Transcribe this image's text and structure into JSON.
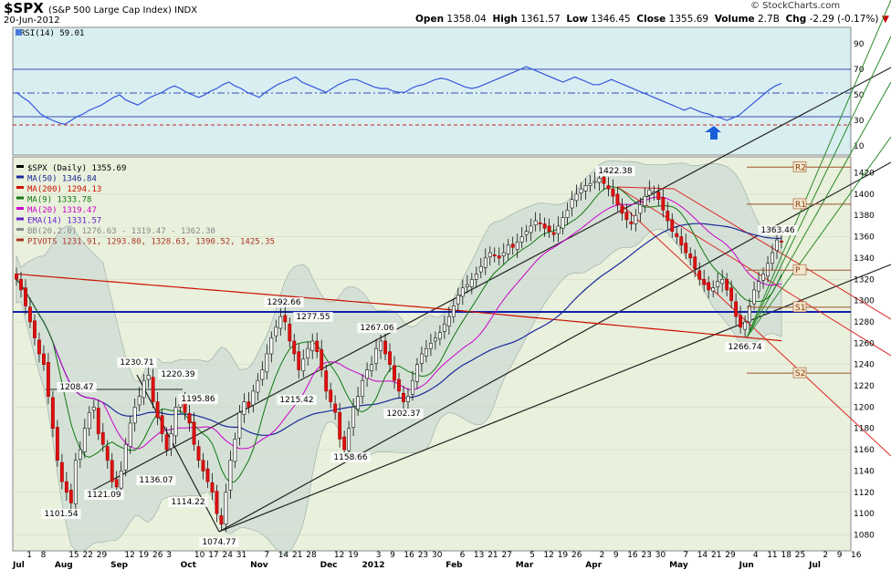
{
  "header": {
    "symbol": "$SPX",
    "name": "(S&P 500 Large Cap Index) INDX",
    "date": "20-Jun-2012",
    "open_label": "Open",
    "open": "1358.04",
    "high_label": "High",
    "high": "1361.57",
    "low_label": "Low",
    "low": "1346.45",
    "close_label": "Close",
    "close": "1355.69",
    "volume_label": "Volume",
    "volume": "2.7B",
    "chg_label": "Chg",
    "chg": "-2.29 (-0.17%)",
    "logo": "© StockCharts.com"
  },
  "rsi": {
    "label": "RSI(14) 59.01",
    "levels": [
      90,
      70,
      50,
      30,
      10
    ],
    "upper": 70,
    "lower": 30,
    "colors": {
      "line": "#3355dd",
      "bg": "#d6ecef",
      "fill": "#4a8ad8"
    }
  },
  "legend": [
    {
      "text": "$SPX (Daily) 1355.69",
      "color": "#000000"
    },
    {
      "text": "MA(50) 1346.84",
      "color": "#1a2a99"
    },
    {
      "text": "MA(200) 1294.13",
      "color": "#cc1100"
    },
    {
      "text": "MA(9) 1333.78",
      "color": "#117711"
    },
    {
      "text": "MA(20) 1319.47",
      "color": "#cc00cc"
    },
    {
      "text": "EMA(14) 1331.57",
      "color": "#6622cc"
    },
    {
      "text": "BB(20,2.0) 1276.63 - 1319.47 - 1362.30",
      "color": "#888888"
    },
    {
      "text": "PIVOTS 1231.91, 1293.80, 1328.63, 1390.52, 1425.35",
      "color": "#aa3322"
    }
  ],
  "pivot_labels": [
    "R2",
    "R1",
    "P",
    "S1",
    "S2"
  ],
  "y_ticks": [
    1080,
    1100,
    1120,
    1140,
    1160,
    1180,
    1200,
    1220,
    1240,
    1260,
    1280,
    1300,
    1320,
    1340,
    1360,
    1380,
    1400,
    1420
  ],
  "x_labels": [
    "Jul",
    "1",
    "8",
    "Aug",
    "15",
    "22",
    "29",
    "Sep",
    "12",
    "19",
    "26",
    "3",
    "Oct",
    "10",
    "17",
    "24",
    "31",
    "Nov",
    "7",
    "14",
    "21",
    "28",
    "Dec",
    "12",
    "19",
    "2012",
    "3",
    "9",
    "16",
    "23",
    "30",
    "Feb",
    "6",
    "13",
    "21",
    "27",
    "Mar",
    "5",
    "12",
    "19",
    "26",
    "Apr",
    "2",
    "9",
    "16",
    "23",
    "30",
    "May",
    "7",
    "14",
    "21",
    "29",
    "Jun",
    "4",
    "11",
    "18",
    "25",
    "Jul",
    "2",
    "9",
    "16"
  ],
  "chart_data": {
    "type": "candlestick",
    "title": "$SPX (Daily) 1355.69",
    "ylim": [
      1065,
      1435
    ],
    "annotations": [
      {
        "text": "1208.47"
      },
      {
        "text": "1230.71"
      },
      {
        "text": "1220.39"
      },
      {
        "text": "1195.86"
      },
      {
        "text": "1101.54"
      },
      {
        "text": "1121.09"
      },
      {
        "text": "1136.07"
      },
      {
        "text": "1114.22"
      },
      {
        "text": "1074.77"
      },
      {
        "text": "1292.66"
      },
      {
        "text": "1277.55"
      },
      {
        "text": "1215.42"
      },
      {
        "text": "1267.06"
      },
      {
        "text": "1158.66"
      },
      {
        "text": "1202.37"
      },
      {
        "text": "1422.38"
      },
      {
        "text": "1363.46"
      },
      {
        "text": "1266.74"
      }
    ],
    "closes": [
      1320,
      1310,
      1295,
      1280,
      1265,
      1250,
      1240,
      1210,
      1180,
      1150,
      1130,
      1120,
      1110,
      1150,
      1160,
      1180,
      1195,
      1200,
      1175,
      1165,
      1150,
      1130,
      1125,
      1140,
      1165,
      1185,
      1200,
      1210,
      1225,
      1230,
      1205,
      1190,
      1175,
      1160,
      1175,
      1200,
      1205,
      1195,
      1185,
      1165,
      1150,
      1140,
      1130,
      1120,
      1100,
      1090,
      1120,
      1150,
      1170,
      1195,
      1205,
      1200,
      1215,
      1225,
      1235,
      1250,
      1265,
      1275,
      1285,
      1280,
      1262,
      1250,
      1235,
      1245,
      1255,
      1262,
      1252,
      1235,
      1215,
      1205,
      1195,
      1170,
      1160,
      1180,
      1200,
      1210,
      1225,
      1235,
      1240,
      1255,
      1262,
      1250,
      1240,
      1225,
      1215,
      1205,
      1210,
      1225,
      1240,
      1250,
      1255,
      1260,
      1265,
      1270,
      1278,
      1285,
      1295,
      1305,
      1312,
      1315,
      1320,
      1325,
      1332,
      1340,
      1345,
      1342,
      1340,
      1345,
      1352,
      1350,
      1355,
      1360,
      1365,
      1370,
      1375,
      1372,
      1368,
      1365,
      1362,
      1370,
      1378,
      1385,
      1395,
      1400,
      1405,
      1408,
      1410,
      1412,
      1415,
      1410,
      1405,
      1398,
      1390,
      1382,
      1376,
      1372,
      1380,
      1390,
      1398,
      1404,
      1402,
      1395,
      1385,
      1375,
      1365,
      1360,
      1352,
      1345,
      1340,
      1330,
      1320,
      1315,
      1310,
      1312,
      1318,
      1320,
      1310,
      1300,
      1285,
      1275,
      1280,
      1295,
      1310,
      1318,
      1325,
      1335,
      1345,
      1357,
      1355
    ],
    "pivots": {
      "R2": 1425.35,
      "R1": 1390.52,
      "P": 1328.63,
      "S1": 1293.8,
      "S2": 1231.91
    },
    "series": [
      {
        "name": "MA(50)",
        "last": 1346.84
      },
      {
        "name": "MA(200)",
        "last": 1294.13
      },
      {
        "name": "MA(9)",
        "last": 1333.78
      },
      {
        "name": "MA(20)",
        "last": 1319.47
      },
      {
        "name": "EMA(14)",
        "last": 1331.57
      }
    ],
    "rsi_values": [
      52,
      48,
      45,
      40,
      35,
      32,
      30,
      28,
      27,
      30,
      33,
      35,
      38,
      40,
      42,
      45,
      48,
      50,
      46,
      44,
      42,
      45,
      48,
      50,
      52,
      55,
      57,
      55,
      52,
      50,
      48,
      50,
      53,
      55,
      58,
      60,
      57,
      55,
      52,
      50,
      48,
      52,
      55,
      58,
      60,
      62,
      64,
      60,
      58,
      56,
      54,
      52,
      55,
      58,
      60,
      62,
      62,
      60,
      58,
      56,
      55,
      55,
      53,
      52,
      52,
      55,
      57,
      58,
      60,
      62,
      63,
      62,
      60,
      58,
      56,
      55,
      56,
      58,
      60,
      62,
      64,
      66,
      68,
      70,
      72,
      70,
      68,
      66,
      64,
      62,
      60,
      62,
      64,
      62,
      60,
      58,
      58,
      60,
      62,
      60,
      58,
      56,
      54,
      52,
      50,
      48,
      46,
      44,
      42,
      40,
      38,
      40,
      38,
      36,
      35,
      33,
      32,
      30,
      32,
      34,
      38,
      42,
      46,
      50,
      54,
      57,
      59
    ]
  }
}
